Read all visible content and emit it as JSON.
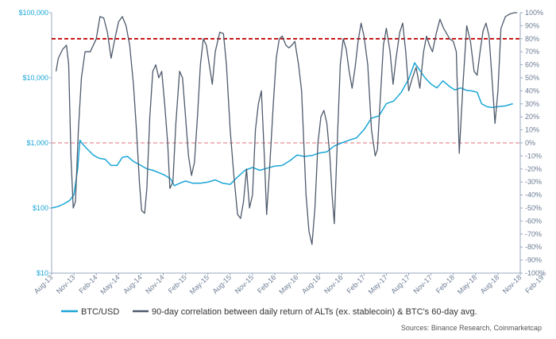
{
  "chart_data": {
    "type": "line",
    "title": "",
    "x_ticks": [
      "Aug-13",
      "Nov-13",
      "Feb-14",
      "May-14",
      "Aug-14",
      "Nov-14",
      "Feb-15",
      "May-15",
      "Aug-15",
      "Nov-15",
      "Feb-16",
      "May-16",
      "Aug-16",
      "Nov-16",
      "Feb-17",
      "May-17",
      "Aug-17",
      "Nov-17",
      "Feb-18",
      "May-18",
      "Aug-18",
      "Nov-18",
      "Feb-19"
    ],
    "left_axis": {
      "scale": "log",
      "range": [
        10,
        100000
      ],
      "ticks": [
        {
          "value": 100000,
          "label": "$100,000"
        },
        {
          "value": 10000,
          "label": "$10,000"
        },
        {
          "value": 1000,
          "label": "$1,000"
        },
        {
          "value": 100,
          "label": "$100"
        },
        {
          "value": 10,
          "label": "$10"
        }
      ]
    },
    "right_axis": {
      "scale": "linear",
      "range": [
        -100,
        100
      ],
      "step": 10,
      "ticks": [
        "100%",
        "90%",
        "80%",
        "70%",
        "60%",
        "50%",
        "40%",
        "30%",
        "20%",
        "10%",
        "0%",
        "-10%",
        "-20%",
        "-30%",
        "-40%",
        "-50%",
        "-60%",
        "-70%",
        "-80%",
        "-90%",
        "-100%"
      ]
    },
    "reference_lines": [
      {
        "axis": "right",
        "value": 80,
        "color": "#c00000",
        "style": "dashed"
      },
      {
        "axis": "right",
        "value": 0,
        "color": "#e8a0a8",
        "style": "dashed"
      }
    ],
    "x_unit": "months since Aug-13 (tick labels every 3 months)",
    "series": [
      {
        "name": "BTC/USD",
        "axis": "left",
        "color": "#1aa6d6",
        "points": [
          [
            0,
            100
          ],
          [
            0.8,
            105
          ],
          [
            1.6,
            115
          ],
          [
            2.4,
            130
          ],
          [
            3.0,
            160
          ],
          [
            3.5,
            400
          ],
          [
            3.8,
            1100
          ],
          [
            4.2,
            950
          ],
          [
            4.8,
            800
          ],
          [
            5.6,
            650
          ],
          [
            6.4,
            580
          ],
          [
            7.2,
            560
          ],
          [
            8.0,
            450
          ],
          [
            8.8,
            450
          ],
          [
            9.5,
            600
          ],
          [
            10.2,
            620
          ],
          [
            11.0,
            520
          ],
          [
            12.0,
            450
          ],
          [
            12.8,
            400
          ],
          [
            13.6,
            380
          ],
          [
            14.4,
            350
          ],
          [
            15.2,
            320
          ],
          [
            16.0,
            280
          ],
          [
            16.5,
            220
          ],
          [
            17.2,
            240
          ],
          [
            18.0,
            260
          ],
          [
            19.0,
            240
          ],
          [
            20.0,
            240
          ],
          [
            21.0,
            250
          ],
          [
            22.0,
            270
          ],
          [
            23.0,
            240
          ],
          [
            24.0,
            230
          ],
          [
            25.0,
            300
          ],
          [
            26.0,
            380
          ],
          [
            27.0,
            420
          ],
          [
            28.0,
            380
          ],
          [
            29.0,
            410
          ],
          [
            30.0,
            440
          ],
          [
            31.0,
            450
          ],
          [
            32.0,
            530
          ],
          [
            33.0,
            650
          ],
          [
            34.0,
            620
          ],
          [
            35.0,
            640
          ],
          [
            36.0,
            700
          ],
          [
            37.0,
            730
          ],
          [
            38.0,
            900
          ],
          [
            39.0,
            1000
          ],
          [
            40.0,
            1100
          ],
          [
            41.0,
            1200
          ],
          [
            42.0,
            1600
          ],
          [
            43.0,
            2400
          ],
          [
            44.0,
            2600
          ],
          [
            45.0,
            4000
          ],
          [
            46.0,
            4400
          ],
          [
            47.0,
            6000
          ],
          [
            48.0,
            9500
          ],
          [
            48.8,
            17000
          ],
          [
            49.5,
            13000
          ],
          [
            50.2,
            10000
          ],
          [
            51.0,
            8000
          ],
          [
            51.8,
            7000
          ],
          [
            52.6,
            9000
          ],
          [
            53.4,
            7500
          ],
          [
            54.2,
            6500
          ],
          [
            55.0,
            7000
          ],
          [
            55.8,
            6400
          ],
          [
            56.5,
            6300
          ],
          [
            57.2,
            6000
          ],
          [
            57.8,
            4000
          ],
          [
            58.5,
            3600
          ],
          [
            59.2,
            3500
          ],
          [
            60.0,
            3600
          ],
          [
            61.0,
            3700
          ],
          [
            62.0,
            4000
          ]
        ]
      },
      {
        "name": "90-day correlation between daily return of ALTs (ex. stablecoin) & BTC's 60-day avg.",
        "axis": "right",
        "color": "#4e5a6c",
        "points": [
          [
            0.6,
            55
          ],
          [
            0.9,
            65
          ],
          [
            1.5,
            72
          ],
          [
            2.0,
            75
          ],
          [
            2.3,
            60
          ],
          [
            2.6,
            -10
          ],
          [
            2.9,
            -50
          ],
          [
            3.2,
            -45
          ],
          [
            3.6,
            10
          ],
          [
            4.0,
            50
          ],
          [
            4.5,
            70
          ],
          [
            5.2,
            70
          ],
          [
            6.0,
            80
          ],
          [
            6.5,
            97
          ],
          [
            7.0,
            96
          ],
          [
            7.5,
            85
          ],
          [
            8.0,
            65
          ],
          [
            8.5,
            80
          ],
          [
            9.0,
            93
          ],
          [
            9.5,
            97
          ],
          [
            10.0,
            90
          ],
          [
            10.5,
            75
          ],
          [
            11.0,
            45
          ],
          [
            11.4,
            10
          ],
          [
            11.8,
            -30
          ],
          [
            12.1,
            -52
          ],
          [
            12.5,
            -54
          ],
          [
            12.8,
            -35
          ],
          [
            13.2,
            20
          ],
          [
            13.6,
            55
          ],
          [
            14.0,
            60
          ],
          [
            14.4,
            50
          ],
          [
            14.8,
            55
          ],
          [
            15.2,
            30
          ],
          [
            15.6,
            0
          ],
          [
            15.9,
            -35
          ],
          [
            16.3,
            -30
          ],
          [
            16.7,
            15
          ],
          [
            17.2,
            55
          ],
          [
            17.6,
            50
          ],
          [
            18.0,
            20
          ],
          [
            18.4,
            -10
          ],
          [
            18.8,
            -25
          ],
          [
            19.2,
            -15
          ],
          [
            19.6,
            20
          ],
          [
            20.0,
            60
          ],
          [
            20.4,
            80
          ],
          [
            20.8,
            75
          ],
          [
            21.2,
            60
          ],
          [
            21.6,
            45
          ],
          [
            22.0,
            70
          ],
          [
            22.6,
            85
          ],
          [
            23.1,
            84
          ],
          [
            23.5,
            60
          ],
          [
            24.0,
            10
          ],
          [
            24.5,
            -25
          ],
          [
            25.0,
            -55
          ],
          [
            25.4,
            -58
          ],
          [
            25.8,
            -45
          ],
          [
            26.2,
            -20
          ],
          [
            26.6,
            -50
          ],
          [
            27.0,
            -40
          ],
          [
            27.4,
            10
          ],
          [
            27.8,
            30
          ],
          [
            28.2,
            40
          ],
          [
            28.6,
            -10
          ],
          [
            28.9,
            -55
          ],
          [
            29.3,
            -20
          ],
          [
            29.8,
            30
          ],
          [
            30.2,
            65
          ],
          [
            30.6,
            80
          ],
          [
            31.0,
            82
          ],
          [
            31.5,
            75
          ],
          [
            31.9,
            73
          ],
          [
            32.3,
            75
          ],
          [
            32.7,
            78
          ],
          [
            33.2,
            60
          ],
          [
            33.6,
            40
          ],
          [
            33.9,
            0
          ],
          [
            34.2,
            -40
          ],
          [
            34.6,
            -68
          ],
          [
            35.0,
            -78
          ],
          [
            35.4,
            -50
          ],
          [
            35.8,
            0
          ],
          [
            36.2,
            20
          ],
          [
            36.6,
            25
          ],
          [
            37.0,
            15
          ],
          [
            37.4,
            -10
          ],
          [
            37.7,
            -40
          ],
          [
            38.0,
            -62
          ],
          [
            38.4,
            0
          ],
          [
            38.8,
            60
          ],
          [
            39.2,
            80
          ],
          [
            39.6,
            72
          ],
          [
            40.0,
            55
          ],
          [
            40.4,
            42
          ],
          [
            40.8,
            58
          ],
          [
            41.2,
            78
          ],
          [
            41.6,
            92
          ],
          [
            42.0,
            82
          ],
          [
            42.5,
            60
          ],
          [
            43.0,
            10
          ],
          [
            43.5,
            -10
          ],
          [
            43.8,
            -5
          ],
          [
            44.2,
            35
          ],
          [
            44.6,
            75
          ],
          [
            45.0,
            88
          ],
          [
            45.5,
            70
          ],
          [
            45.9,
            45
          ],
          [
            46.3,
            65
          ],
          [
            46.8,
            85
          ],
          [
            47.2,
            92
          ],
          [
            47.6,
            70
          ],
          [
            48.0,
            40
          ],
          [
            48.5,
            50
          ],
          [
            49.0,
            58
          ],
          [
            49.5,
            42
          ],
          [
            50.0,
            70
          ],
          [
            50.4,
            82
          ],
          [
            50.8,
            75
          ],
          [
            51.2,
            70
          ],
          [
            51.7,
            84
          ],
          [
            52.2,
            95
          ],
          [
            52.7,
            88
          ],
          [
            53.1,
            84
          ],
          [
            53.5,
            80
          ],
          [
            54.0,
            78
          ],
          [
            54.4,
            70
          ],
          [
            54.8,
            -8
          ],
          [
            55.3,
            45
          ],
          [
            55.8,
            90
          ],
          [
            56.3,
            78
          ],
          [
            56.8,
            55
          ],
          [
            57.2,
            52
          ],
          [
            57.6,
            70
          ],
          [
            58.0,
            86
          ],
          [
            58.4,
            92
          ],
          [
            58.8,
            82
          ],
          [
            59.2,
            50
          ],
          [
            59.6,
            15
          ],
          [
            60.0,
            40
          ],
          [
            60.4,
            88
          ],
          [
            61.0,
            97
          ],
          [
            61.6,
            99
          ],
          [
            62.2,
            100
          ],
          [
            62.6,
            100
          ]
        ]
      }
    ],
    "legend": {
      "placement": "bottom",
      "items": [
        "BTC/USD",
        "90-day correlation between daily return of ALTs (ex. stablecoin) & BTC's 60-day avg."
      ]
    },
    "source": "Sources: Binance Research, Coinmarketcap",
    "colors": {
      "left_axis_text": "#1aa6d6",
      "right_axis_text": "#6b7c93",
      "x_axis_text": "#6b7c93",
      "axis_line": "#9aa9bf"
    }
  }
}
